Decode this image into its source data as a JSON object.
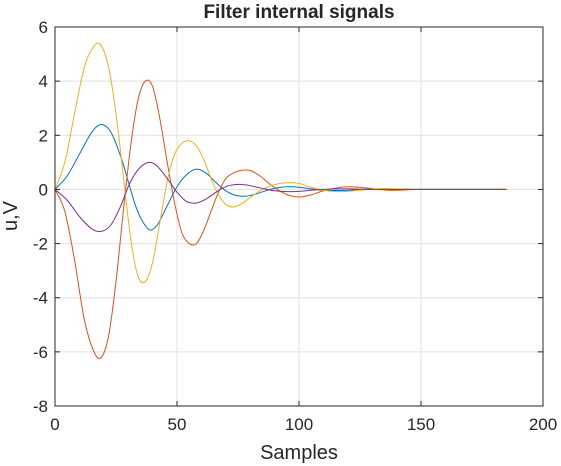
{
  "chart_data": {
    "type": "line",
    "title": "Filter internal signals",
    "xlabel": "Samples",
    "ylabel": "u,V",
    "xlim": [
      0,
      200
    ],
    "ylim": [
      -8,
      6
    ],
    "xticks": [
      0,
      50,
      100,
      150,
      200
    ],
    "yticks": [
      -8,
      -6,
      -4,
      -2,
      0,
      2,
      4,
      6
    ],
    "grid": true,
    "legend": "none",
    "colors": {
      "grid": "#e0e0e0",
      "axes": "#262626",
      "series": [
        "#0072bd",
        "#d95319",
        "#edb120",
        "#7e2f8e"
      ]
    },
    "series": [
      {
        "color": "#0072bd",
        "x": [
          0,
          5,
          10,
          15,
          19,
          23,
          27,
          30,
          33,
          36,
          39,
          42,
          46,
          50,
          54,
          58,
          62,
          66,
          70,
          74,
          78,
          82,
          86,
          90,
          95,
          100,
          105,
          110,
          115,
          120,
          125,
          130,
          135,
          140,
          150,
          165,
          185
        ],
        "y": [
          0,
          0.5,
          1.3,
          2.1,
          2.4,
          2.1,
          1.2,
          0.3,
          -0.6,
          -1.2,
          -1.5,
          -1.3,
          -0.6,
          0.1,
          0.55,
          0.75,
          0.6,
          0.25,
          -0.05,
          -0.22,
          -0.25,
          -0.18,
          -0.06,
          0.04,
          0.1,
          0.08,
          0.02,
          -0.03,
          -0.04,
          -0.03,
          0.0,
          0.01,
          0.01,
          0.0,
          0,
          0,
          0
        ]
      },
      {
        "color": "#d95319",
        "x": [
          0,
          4,
          8,
          12,
          16,
          19,
          22,
          25,
          28,
          31,
          34,
          37,
          40,
          43,
          46,
          49,
          52,
          55,
          58,
          61,
          64,
          67,
          70,
          73,
          76,
          80,
          84,
          88,
          92,
          96,
          100,
          105,
          110,
          115,
          120,
          125,
          130,
          135,
          140,
          150,
          165,
          185
        ],
        "y": [
          0,
          -0.8,
          -2.6,
          -4.8,
          -6.0,
          -6.2,
          -5.4,
          -3.4,
          -0.8,
          1.6,
          3.3,
          4.0,
          3.8,
          2.6,
          1.0,
          -0.5,
          -1.6,
          -2.0,
          -2.0,
          -1.5,
          -0.8,
          -0.1,
          0.4,
          0.6,
          0.7,
          0.7,
          0.5,
          0.2,
          -0.05,
          -0.22,
          -0.28,
          -0.2,
          -0.05,
          0.05,
          0.1,
          0.08,
          0.03,
          -0.02,
          -0.03,
          0,
          0,
          0
        ]
      },
      {
        "color": "#edb120",
        "x": [
          0,
          4,
          8,
          12,
          16,
          19,
          22,
          25,
          28,
          31,
          34,
          37,
          40,
          43,
          46,
          49,
          52,
          55,
          58,
          61,
          64,
          67,
          70,
          73,
          76,
          80,
          84,
          88,
          92,
          96,
          100,
          105,
          110,
          115,
          120,
          125,
          130,
          135,
          140,
          150,
          165,
          185
        ],
        "y": [
          0,
          1.0,
          2.8,
          4.5,
          5.3,
          5.3,
          4.5,
          2.8,
          0.5,
          -1.8,
          -3.2,
          -3.4,
          -2.7,
          -1.2,
          0.3,
          1.3,
          1.7,
          1.8,
          1.6,
          1.1,
          0.4,
          -0.2,
          -0.55,
          -0.65,
          -0.55,
          -0.3,
          -0.05,
          0.12,
          0.22,
          0.25,
          0.22,
          0.08,
          -0.03,
          -0.08,
          -0.07,
          -0.03,
          0.01,
          0.03,
          0.02,
          0,
          0,
          0
        ]
      },
      {
        "color": "#7e2f8e",
        "x": [
          0,
          5,
          10,
          15,
          19,
          23,
          27,
          30,
          33,
          36,
          39,
          42,
          46,
          50,
          54,
          58,
          62,
          66,
          70,
          74,
          78,
          82,
          86,
          90,
          95,
          100,
          105,
          110,
          115,
          120,
          125,
          130,
          135,
          140,
          150,
          165,
          185
        ],
        "y": [
          0,
          -0.4,
          -1.0,
          -1.45,
          -1.55,
          -1.3,
          -0.6,
          0.1,
          0.6,
          0.9,
          1.0,
          0.85,
          0.4,
          -0.1,
          -0.45,
          -0.5,
          -0.35,
          -0.1,
          0.1,
          0.18,
          0.17,
          0.1,
          0.02,
          -0.05,
          -0.08,
          -0.07,
          -0.03,
          0.0,
          0.02,
          0.02,
          0.01,
          0.0,
          0,
          0,
          0,
          0,
          0
        ]
      }
    ]
  }
}
